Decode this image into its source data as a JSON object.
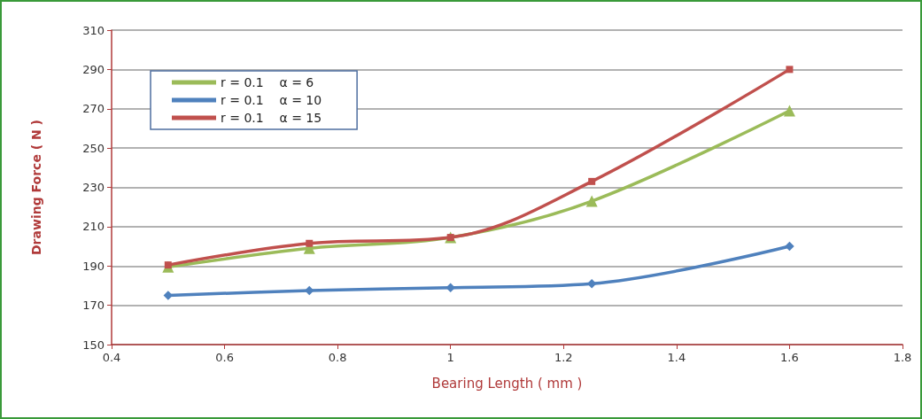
{
  "chart_data": {
    "type": "line",
    "xlabel": "Bearing Length ( mm )",
    "ylabel": "Drawing Force ( N )",
    "x": [
      0.5,
      0.75,
      1,
      1.25,
      1.6
    ],
    "series": [
      {
        "name": "r = 0.1    α = 6",
        "color": "#9bbb59",
        "marker": "triangle",
        "values": [
          189.5,
          199,
          204.5,
          223,
          269
        ]
      },
      {
        "name": "r = 0.1    α = 10",
        "color": "#4f81bd",
        "marker": "diamond",
        "values": [
          175,
          177.5,
          179,
          181,
          200
        ]
      },
      {
        "name": "r = 0.1    α = 15",
        "color": "#c0504d",
        "marker": "square",
        "values": [
          190.5,
          201.5,
          204.5,
          233,
          290
        ]
      }
    ],
    "xlim": [
      0.4,
      1.8
    ],
    "xticks": [
      0.4,
      0.6,
      0.8,
      1,
      1.2,
      1.4,
      1.6,
      1.8
    ],
    "ylim": [
      150,
      310
    ],
    "yticks": [
      150,
      170,
      190,
      210,
      230,
      250,
      270,
      290,
      310
    ],
    "grid": "y",
    "legend": "top left",
    "line_style": "solid"
  }
}
